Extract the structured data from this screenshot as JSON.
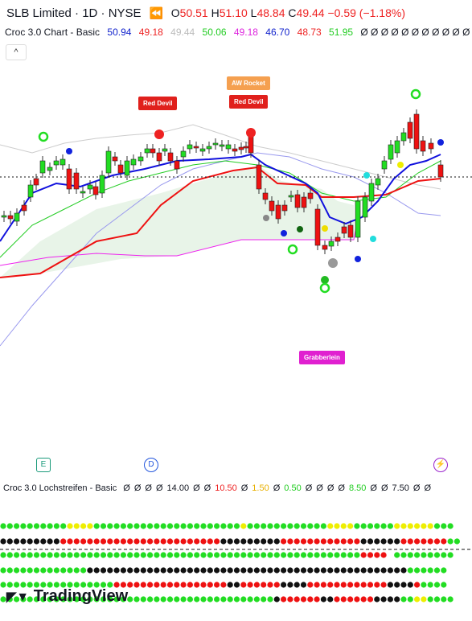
{
  "header": {
    "symbol": "SLB Limited · 1D · NYSE",
    "ohlc": [
      {
        "label": "O",
        "value": "50.51"
      },
      {
        "label": "H",
        "value": "51.10"
      },
      {
        "label": "L",
        "value": "48.84"
      },
      {
        "label": "C",
        "value": "49.44"
      }
    ],
    "change": "−0.59 (−1.18%)"
  },
  "indicator": {
    "name": "Croc 3.0 Chart - Basic",
    "values": [
      "50.94",
      "49.18",
      "49.44",
      "50.06",
      "49.18",
      "46.70",
      "48.73",
      "51.95"
    ],
    "empty_values": "Ø Ø Ø Ø Ø Ø Ø Ø Ø Ø Ø Ø Ø"
  },
  "signals": [
    "Red Devil",
    "AW Rocket",
    "Red Devil",
    "Grabberlein"
  ],
  "events": [
    "E",
    "D"
  ],
  "pane2": {
    "name": "Croc 3.0 Lochstreifen - Basic",
    "values": [
      "Ø",
      "Ø",
      "Ø",
      "Ø",
      "14.00",
      "Ø",
      "Ø",
      "10.50",
      "Ø",
      "1.50",
      "Ø",
      "0.50",
      "Ø",
      "Ø",
      "Ø",
      "Ø",
      "8.50",
      "Ø",
      "Ø",
      "7.50",
      "Ø",
      "Ø"
    ]
  },
  "brand": "TradingView"
}
